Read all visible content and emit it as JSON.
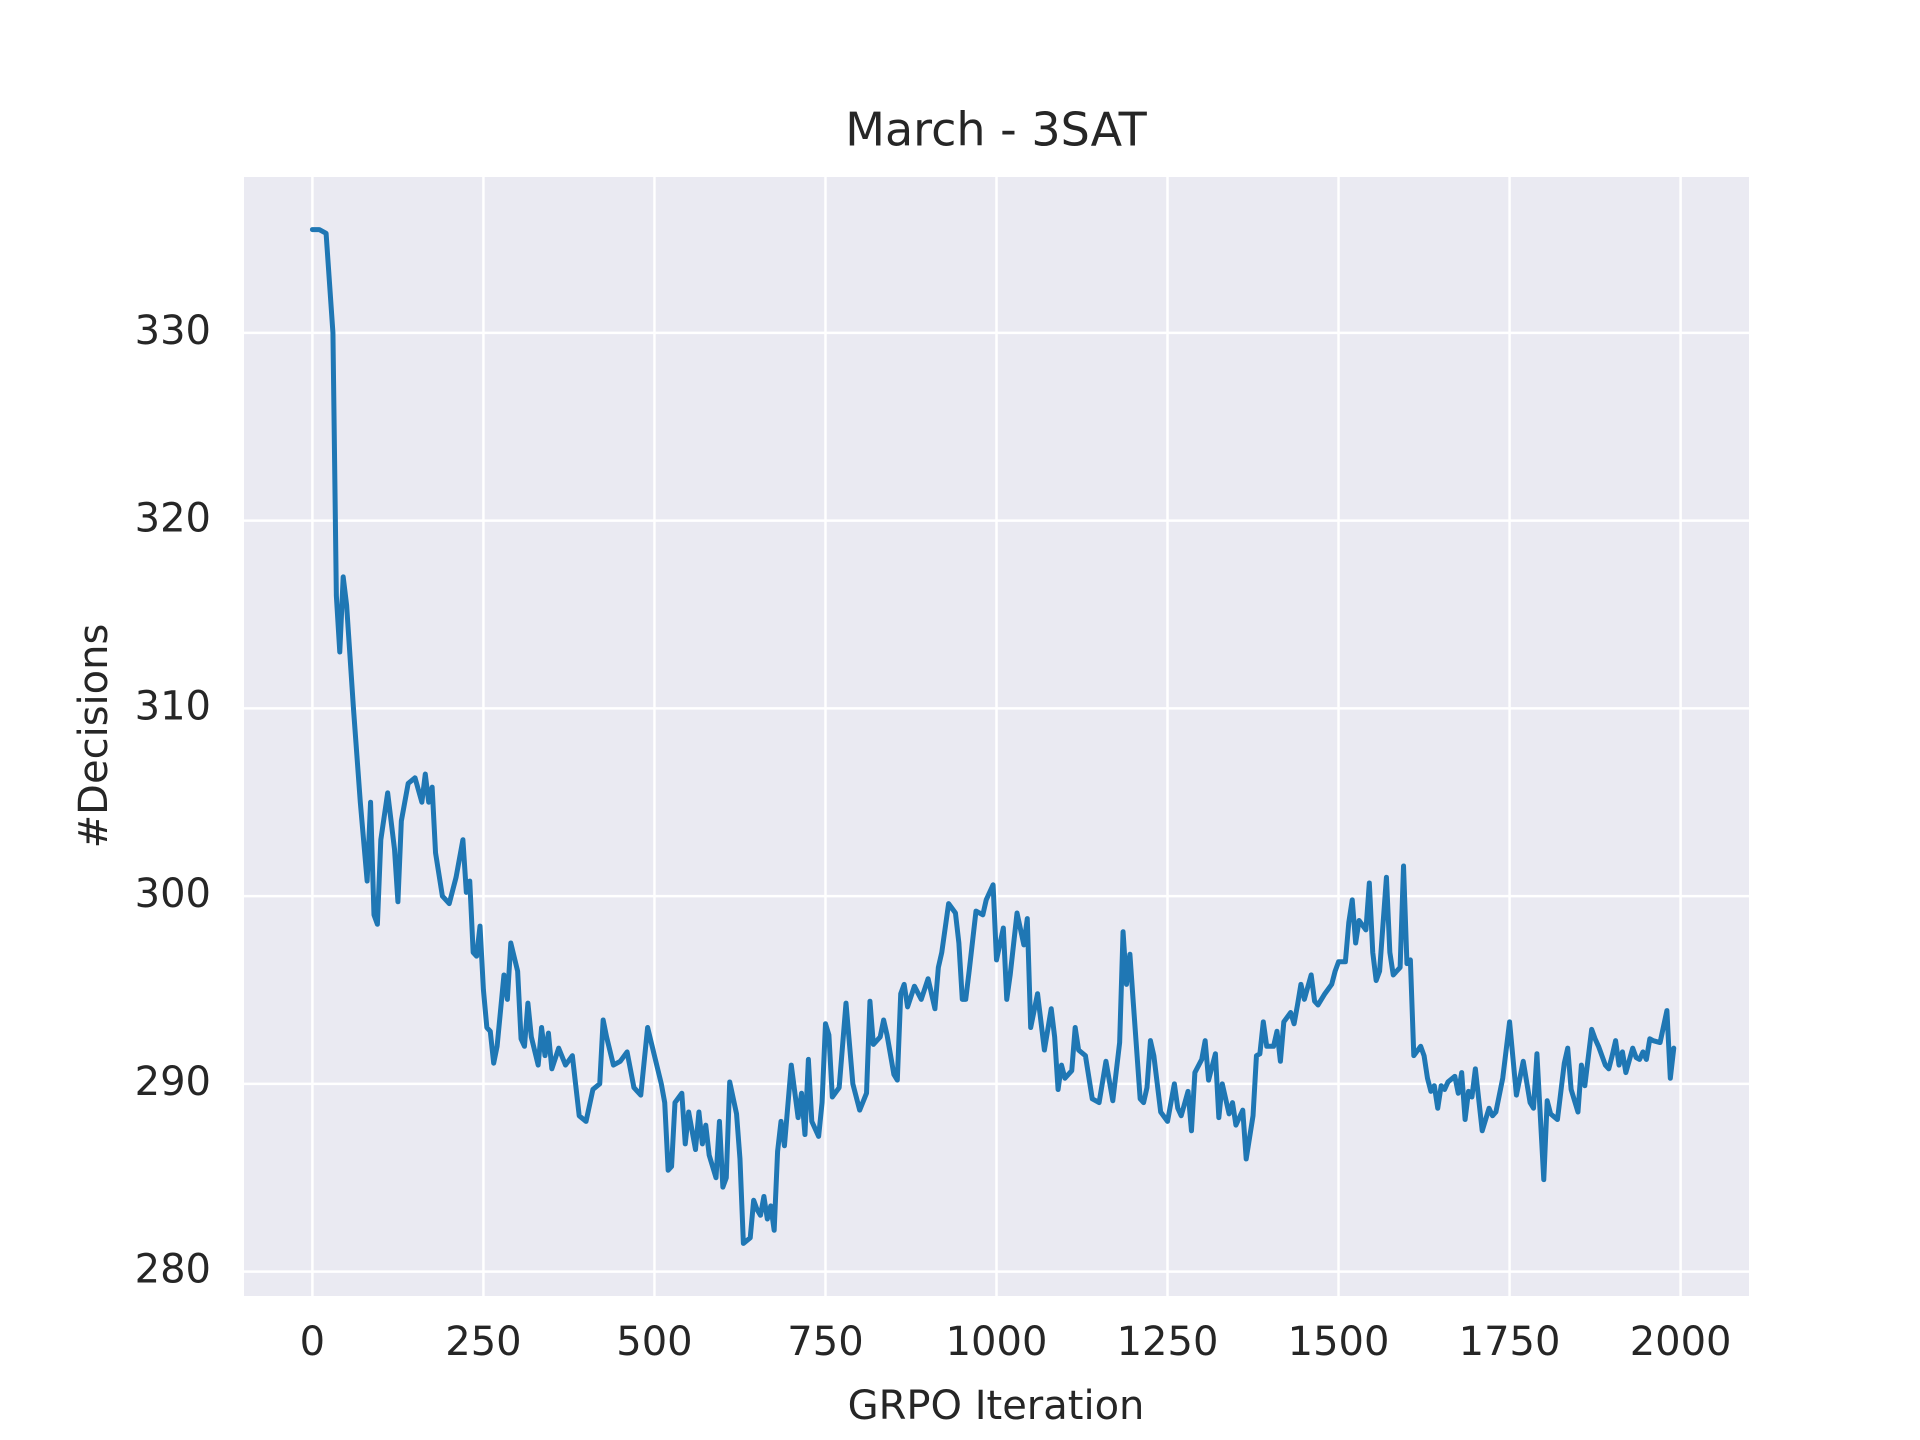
{
  "chart_data": {
    "type": "line",
    "title": "March - 3SAT",
    "xlabel": "GRPO Iteration",
    "ylabel": "#Decisions",
    "color": "#1f77b4",
    "grid": true,
    "xlim": [
      -100,
      2100
    ],
    "ylim": [
      278.7,
      338.3
    ],
    "xticks": [
      0,
      250,
      500,
      750,
      1000,
      1250,
      1500,
      1750,
      2000
    ],
    "yticks": [
      280,
      290,
      300,
      310,
      320,
      330
    ],
    "x": [
      0,
      10,
      20,
      30,
      35,
      40,
      45,
      50,
      60,
      70,
      80,
      85,
      90,
      95,
      100,
      110,
      120,
      125,
      130,
      140,
      150,
      160,
      165,
      170,
      175,
      180,
      190,
      200,
      210,
      220,
      225,
      230,
      235,
      240,
      245,
      250,
      255,
      260,
      265,
      270,
      280,
      285,
      290,
      300,
      305,
      310,
      315,
      320,
      330,
      335,
      340,
      345,
      350,
      360,
      370,
      380,
      390,
      400,
      410,
      420,
      425,
      430,
      440,
      450,
      460,
      470,
      480,
      490,
      500,
      510,
      515,
      520,
      525,
      530,
      540,
      545,
      550,
      560,
      565,
      570,
      575,
      580,
      590,
      595,
      600,
      605,
      610,
      620,
      625,
      630,
      640,
      645,
      650,
      655,
      660,
      665,
      670,
      675,
      680,
      685,
      690,
      700,
      710,
      715,
      720,
      725,
      730,
      740,
      745,
      750,
      755,
      760,
      770,
      780,
      790,
      800,
      810,
      815,
      820,
      830,
      835,
      840,
      850,
      855,
      860,
      865,
      870,
      880,
      890,
      900,
      910,
      915,
      920,
      930,
      940,
      945,
      950,
      955,
      960,
      970,
      975,
      980,
      985,
      995,
      1000,
      1010,
      1015,
      1020,
      1030,
      1040,
      1045,
      1050,
      1060,
      1070,
      1080,
      1085,
      1090,
      1095,
      1100,
      1110,
      1115,
      1120,
      1130,
      1140,
      1150,
      1160,
      1170,
      1180,
      1185,
      1190,
      1195,
      1200,
      1210,
      1215,
      1220,
      1225,
      1230,
      1240,
      1250,
      1260,
      1265,
      1270,
      1280,
      1285,
      1290,
      1300,
      1305,
      1310,
      1320,
      1325,
      1330,
      1340,
      1345,
      1350,
      1360,
      1365,
      1375,
      1380,
      1385,
      1390,
      1395,
      1405,
      1410,
      1415,
      1420,
      1430,
      1435,
      1440,
      1445,
      1450,
      1460,
      1465,
      1470,
      1480,
      1490,
      1495,
      1500,
      1510,
      1515,
      1520,
      1525,
      1530,
      1540,
      1545,
      1550,
      1555,
      1560,
      1570,
      1575,
      1580,
      1590,
      1595,
      1600,
      1605,
      1610,
      1620,
      1625,
      1630,
      1635,
      1640,
      1645,
      1650,
      1655,
      1660,
      1670,
      1675,
      1680,
      1685,
      1690,
      1695,
      1700,
      1710,
      1720,
      1725,
      1730,
      1740,
      1750,
      1760,
      1770,
      1780,
      1785,
      1790,
      1800,
      1805,
      1810,
      1820,
      1830,
      1835,
      1840,
      1850,
      1855,
      1860,
      1870,
      1875,
      1880,
      1890,
      1895,
      1900,
      1905,
      1910,
      1915,
      1920,
      1930,
      1935,
      1940,
      1945,
      1950,
      1955,
      1960,
      1970,
      1980,
      1985,
      1990
    ],
    "values": [
      335.5,
      335.5,
      335.3,
      330,
      316,
      313,
      317,
      315.5,
      310,
      305,
      300.8,
      305,
      299,
      298.5,
      303,
      305.5,
      302.5,
      299.7,
      304,
      306,
      306.3,
      305,
      306.5,
      305,
      305.8,
      302.3,
      300,
      299.6,
      301,
      303,
      300.2,
      300.8,
      297,
      296.8,
      298.4,
      295,
      293,
      292.8,
      291.1,
      292,
      295.8,
      294.5,
      297.5,
      296,
      292.4,
      292,
      294.3,
      292.5,
      291,
      293,
      291.5,
      292.7,
      290.8,
      291.9,
      291,
      291.5,
      288.3,
      288,
      289.7,
      290,
      293.4,
      292.5,
      291,
      291.2,
      291.7,
      289.8,
      289.4,
      293,
      291.5,
      290,
      289,
      285.4,
      285.6,
      289,
      289.5,
      286.8,
      288.5,
      286.5,
      288.5,
      286.8,
      287.8,
      286.2,
      285,
      288,
      284.5,
      285,
      290.1,
      288.4,
      286,
      281.5,
      281.8,
      283.8,
      283.3,
      283,
      284,
      282.8,
      283.5,
      282.2,
      286.4,
      288,
      286.7,
      291,
      288.2,
      289.5,
      287.3,
      291.3,
      288,
      287.2,
      289,
      293.2,
      292.6,
      289.3,
      289.8,
      294.3,
      290,
      288.6,
      289.5,
      294.4,
      292.1,
      292.5,
      293.4,
      292.6,
      290.5,
      290.2,
      294.8,
      295.3,
      294.1,
      295.2,
      294.5,
      295.6,
      294,
      296.2,
      297,
      299.6,
      299.1,
      297.5,
      294.5,
      294.5,
      296,
      299.2,
      299.1,
      299,
      299.8,
      300.6,
      296.6,
      298.3,
      294.5,
      295.8,
      299.1,
      297.4,
      298.8,
      293,
      294.8,
      291.8,
      294,
      292.5,
      289.7,
      291,
      290.3,
      290.7,
      293,
      291.8,
      291.5,
      289.2,
      289,
      291.2,
      289.1,
      292.2,
      298.1,
      295.3,
      296.9,
      294.3,
      289.2,
      289,
      289.8,
      292.3,
      291.5,
      288.5,
      288,
      290,
      288.7,
      288.3,
      289.6,
      287.5,
      290.6,
      291.3,
      292.3,
      290.2,
      291.6,
      288.2,
      290,
      288.4,
      289,
      287.8,
      288.6,
      286,
      288.3,
      291.5,
      291.6,
      293.3,
      292,
      292,
      292.8,
      291.2,
      293.3,
      293.8,
      293.2,
      294.2,
      295.3,
      294.5,
      295.8,
      294.4,
      294.2,
      294.8,
      295.3,
      296,
      296.5,
      296.5,
      298.6,
      299.8,
      297.5,
      298.7,
      298.2,
      300.7,
      297,
      295.5,
      296,
      301,
      297,
      295.8,
      296.2,
      301.6,
      296.4,
      296.6,
      291.5,
      292,
      291.5,
      290.3,
      289.6,
      289.9,
      288.7,
      289.9,
      289.7,
      290.1,
      290.4,
      289.5,
      290.6,
      288.1,
      289.6,
      289.3,
      290.8,
      287.5,
      288.7,
      288.3,
      288.5,
      290.3,
      293.3,
      289.4,
      291.2,
      289,
      288.7,
      291.6,
      284.9,
      289.1,
      288.4,
      288.1,
      291.1,
      291.9,
      289.7,
      288.5,
      291,
      289.9,
      292.9,
      292.4,
      292,
      291,
      290.8,
      291.5,
      292.3,
      291,
      291.7,
      290.6,
      291.9,
      291.4,
      291.3,
      291.7,
      291.3,
      292.4,
      292.3,
      292.2,
      293.9,
      290.3,
      291.9
    ]
  }
}
